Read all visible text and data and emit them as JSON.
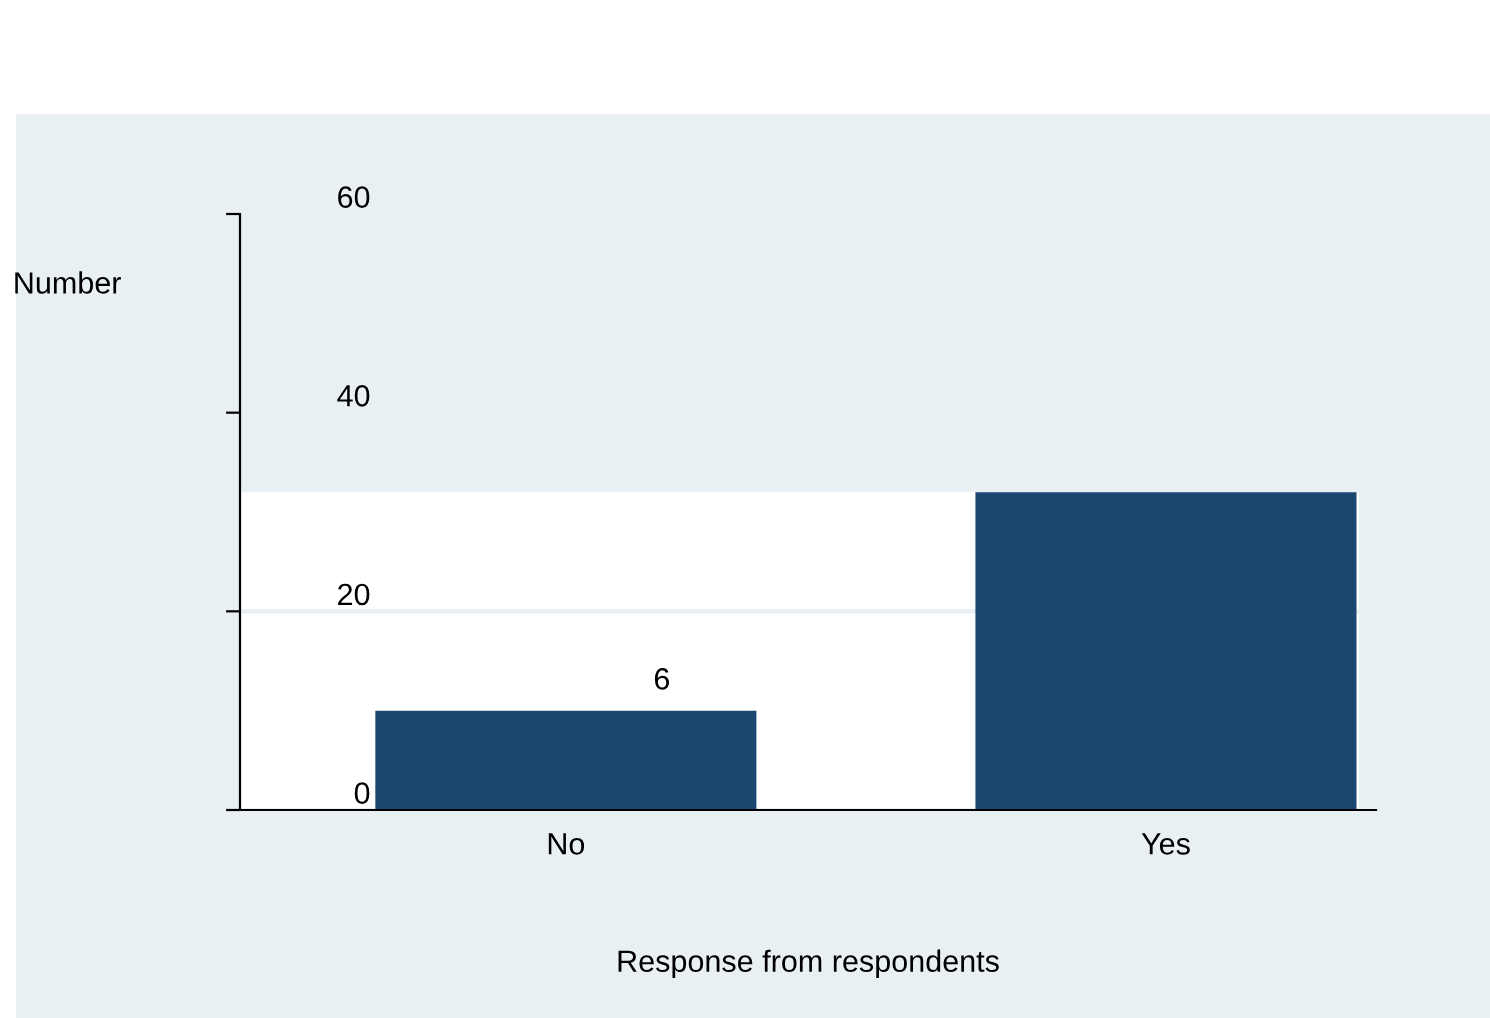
{
  "chart_data": {
    "type": "bar",
    "xlabel": "Response from respondents",
    "ylabel": "Number",
    "categories": [
      "No",
      "Yes"
    ],
    "series": [
      {
        "color": "#1c4770",
        "values": [
          10,
          32
        ]
      }
    ],
    "annotations": [
      {
        "text": "6",
        "x": "No",
        "y": 10
      }
    ],
    "ylim": [
      0,
      60
    ],
    "yticks": [
      0,
      20,
      40,
      60
    ],
    "grid": "y",
    "bands": [
      {
        "axis": "y",
        "from": 0,
        "to": 32,
        "color": "#ffffff"
      }
    ]
  }
}
